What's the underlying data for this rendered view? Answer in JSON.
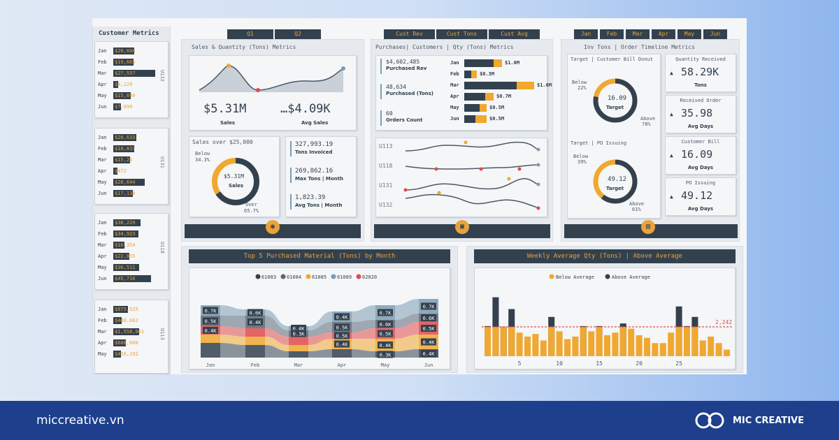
{
  "left": {
    "title": "Customer Metrics",
    "groups": [
      {
        "code": "U132",
        "rows": [
          {
            "month": "Jan",
            "label": "$20,668",
            "pct": 0.5
          },
          {
            "month": "Feb",
            "label": "$19,665",
            "pct": 0.48
          },
          {
            "month": "Mar",
            "label": "$27,557",
            "pct": 1.0
          },
          {
            "month": "Apr",
            "label": "$4,120",
            "pct": 0.12
          },
          {
            "month": "May",
            "label": "$15,690",
            "pct": 0.42
          },
          {
            "month": "Jun",
            "label": "$7,890",
            "pct": 0.18
          }
        ]
      },
      {
        "code": "U131",
        "rows": [
          {
            "month": "Jan",
            "label": "$20,633",
            "pct": 0.55
          },
          {
            "month": "Feb",
            "label": "$18,837",
            "pct": 0.5
          },
          {
            "month": "Mar",
            "label": "$15,26",
            "pct": 0.4
          },
          {
            "month": "Apr",
            "label": "$472",
            "pct": 0.05
          },
          {
            "month": "May",
            "label": "$28,644",
            "pct": 0.75
          },
          {
            "month": "Jun",
            "label": "$17,138",
            "pct": 0.46
          }
        ]
      },
      {
        "code": "U118",
        "rows": [
          {
            "month": "Jan",
            "label": "$38,229",
            "pct": 0.65
          },
          {
            "month": "Feb",
            "label": "$34,923",
            "pct": 0.6
          },
          {
            "month": "Mar",
            "label": "$16,354",
            "pct": 0.27
          },
          {
            "month": "Apr",
            "label": "$22,855",
            "pct": 0.38
          },
          {
            "month": "May",
            "label": "$36,511",
            "pct": 0.62
          },
          {
            "month": "Jun",
            "label": "$45,716",
            "pct": 0.9
          }
        ]
      },
      {
        "code": "U113",
        "rows": [
          {
            "month": "Jan",
            "label": "$875,525",
            "pct": 0.35
          },
          {
            "month": "Feb",
            "label": "$448,662",
            "pct": 0.2
          },
          {
            "month": "Mar",
            "label": "$1,558,061",
            "pct": 0.62
          },
          {
            "month": "Apr",
            "label": "$688,000",
            "pct": 0.3
          },
          {
            "month": "May",
            "label": "$428,192",
            "pct": 0.18
          }
        ]
      }
    ]
  },
  "sales": {
    "tabs": [
      "Q1",
      "Q2"
    ],
    "panel_title": "Sales & Quantity (Tons)  Metrics",
    "total_value": "$5.31M",
    "total_label": "Sales",
    "avg_value": "…$4.09K",
    "avg_label": "Avg Sales",
    "donut_title": "Sales over $25,000",
    "donut_center_value": "$5.31M",
    "donut_center_label": "Sales",
    "below_label": "Below",
    "below_pct": "34.3%",
    "over_label": "Over",
    "over_pct": "65.7%",
    "over_fraction": 0.657,
    "kpis": [
      {
        "value": "327,993.19",
        "label": "Tons Invoiced"
      },
      {
        "value": "269,862.16",
        "label": "Max Tons | Month"
      },
      {
        "value": "1,823.39",
        "label": "Avg Tons | Month"
      }
    ]
  },
  "purchases": {
    "tabs": [
      "Cust Rev",
      "Cust Tons",
      "Cust Avg"
    ],
    "panel_title": "Purchases| Customers | Qty (Tons)  Metrics",
    "kpis": [
      {
        "value": "$4,602,485",
        "label": "Purchased Rev"
      },
      {
        "value": "48,634",
        "label": "Purchased (Tons)"
      },
      {
        "value": "60",
        "label": "Orders Count"
      }
    ],
    "bars": [
      {
        "month": "Jan",
        "label": "$1.0M",
        "dark": 0.42,
        "orange": 0.12
      },
      {
        "month": "Feb",
        "label": "$0.3M",
        "dark": 0.1,
        "orange": 0.08
      },
      {
        "month": "Mar",
        "label": "$1.6M",
        "dark": 0.75,
        "orange": 0.25
      },
      {
        "month": "Apr",
        "label": "$0.7M",
        "dark": 0.3,
        "orange": 0.12
      },
      {
        "month": "May",
        "label": "$0.5M",
        "dark": 0.22,
        "orange": 0.1
      },
      {
        "month": "Jun",
        "label": "$0.5M",
        "dark": 0.16,
        "orange": 0.16
      }
    ],
    "line_series": [
      "U113",
      "U118",
      "U131",
      "U132"
    ]
  },
  "inventory": {
    "tabs": [
      "Jan",
      "Feb",
      "Mar",
      "Apr",
      "May",
      "Jun"
    ],
    "panel_title": "Inv Tons | Order Timeline Metrics",
    "donut1_title": "Target | Customer Bill Donut",
    "donut1_value": "16.09",
    "donut1_label": "Target",
    "donut1_below_label": "Below",
    "donut1_below_pct": "22%",
    "donut1_above_label": "Above",
    "donut1_above_pct": "78%",
    "donut1_above_fraction": 0.78,
    "donut2_title": "Target | PO Issuing",
    "donut2_value": "49.12",
    "donut2_label": "Target",
    "donut2_below_label": "Below",
    "donut2_below_pct": "39%",
    "donut2_above_label": "Above",
    "donut2_above_pct": "61%",
    "donut2_above_fraction": 0.61,
    "kpis": [
      {
        "title": "Quantity Received",
        "value": "58.29K",
        "label": "Tons"
      },
      {
        "title": "Received Order",
        "value": "35.98",
        "label": "Avg Days"
      },
      {
        "title": "Customer Bill",
        "value": "16.09",
        "label": "Avg Days"
      },
      {
        "title": "PO Issuing",
        "value": "49.12",
        "label": "Avg Days"
      }
    ]
  },
  "top5": {
    "title": "Top 5  Purchased Material (Tons) by  Month",
    "legend": [
      {
        "name": "61083",
        "color": "#33414f"
      },
      {
        "name": "61084",
        "color": "#5a6675"
      },
      {
        "name": "61085",
        "color": "#f0a830"
      },
      {
        "name": "61089",
        "color": "#7d9cb3"
      },
      {
        "name": "62020",
        "color": "#e04b4b"
      }
    ],
    "months": [
      "Jan",
      "Feb",
      "Mar",
      "Apr",
      "May",
      "Jun"
    ]
  },
  "weekly": {
    "title": "Weekly Average Qty (Tons) | Above Average",
    "legend_below": "Below Average",
    "legend_above": "Above Average",
    "avg_label": "2,242",
    "ticks": [
      "5",
      "10",
      "15",
      "20",
      "25"
    ]
  },
  "chart_data": [
    {
      "type": "area",
      "title": "Sales & Quantity (Tons)  Metrics",
      "x": [
        1,
        2,
        3,
        4,
        5,
        6
      ],
      "values": [
        2.2,
        3.4,
        1.6,
        2.5,
        2.4,
        3.0
      ]
    },
    {
      "type": "bar",
      "title": "Purchases| Customers | Qty (Tons)  Metrics",
      "categories": [
        "Jan",
        "Feb",
        "Mar",
        "Apr",
        "May",
        "Jun"
      ],
      "values": [
        1.0,
        0.3,
        1.6,
        0.7,
        0.5,
        0.5
      ]
    },
    {
      "type": "line",
      "categories": [
        "Jan",
        "Feb",
        "Mar",
        "Apr",
        "May",
        "Jun"
      ],
      "series": [
        {
          "name": "U113",
          "values": [
            0.4,
            0.55,
            0.5,
            0.6,
            0.55,
            0.5
          ]
        },
        {
          "name": "U118",
          "values": [
            0.5,
            0.45,
            0.5,
            0.48,
            0.5,
            0.45
          ]
        },
        {
          "name": "U131",
          "values": [
            0.5,
            0.45,
            0.4,
            0.55,
            0.45,
            0.4
          ]
        },
        {
          "name": "U132",
          "values": [
            0.45,
            0.55,
            0.4,
            0.45,
            0.5,
            0.4
          ]
        }
      ]
    },
    {
      "type": "bar",
      "title": "Top 5  Purchased Material (Tons) by  Month",
      "categories": [
        "Jan",
        "Feb",
        "Mar",
        "Apr",
        "May",
        "Jun"
      ],
      "series": [
        {
          "name": "61083",
          "values": [
            0.7,
            0.6,
            0.3,
            0.4,
            0.3,
            0.4
          ]
        },
        {
          "name": "61085",
          "values": [
            0.4,
            0.4,
            0.3,
            0.5,
            0.6,
            0.7
          ]
        },
        {
          "name": "62020",
          "values": [
            0.4,
            0.4,
            0.4,
            0.3,
            0.5,
            0.6
          ]
        },
        {
          "name": "61084",
          "values": [
            0.5,
            0.6,
            0.3,
            0.5,
            0.4,
            0.4
          ]
        },
        {
          "name": "61089",
          "values": [
            0.5,
            0.3,
            0.2,
            0.5,
            0.7,
            0.7
          ]
        }
      ],
      "data_labels": [
        [
          "0.7K",
          "0.5K",
          "0.4K"
        ],
        [
          "0.6K",
          "0.4K"
        ],
        [
          "0.4K",
          "0.3K"
        ],
        [
          "0.4K",
          "0.5K",
          "0.5K",
          "0.4K"
        ],
        [
          "0.7K",
          "0.6K",
          "0.5K",
          "0.4K",
          "0.3K"
        ],
        [
          "0.7K",
          "0.6K",
          "0.5K",
          "0.4K",
          "0.4K"
        ]
      ]
    },
    {
      "type": "bar",
      "title": "Weekly Average Qty (Tons) | Above Average",
      "x": [
        1,
        2,
        3,
        4,
        5,
        6,
        7,
        8,
        9,
        10,
        11,
        12,
        13,
        14,
        15,
        16,
        17,
        18,
        19,
        20,
        21,
        22,
        23,
        24,
        25,
        26,
        27,
        28,
        29,
        30,
        31
      ],
      "values": [
        2300,
        4500,
        2250,
        3600,
        1800,
        1500,
        1700,
        1200,
        3000,
        1900,
        1300,
        1500,
        2300,
        1900,
        2300,
        1600,
        1800,
        2500,
        2100,
        1600,
        1400,
        1000,
        1000,
        1800,
        3800,
        2300,
        3000,
        1200,
        1500,
        1000,
        500
      ],
      "average": 2242,
      "xlim": [
        1,
        31
      ]
    }
  ],
  "footer": {
    "url": "miccreative.vn",
    "brand": "MIC CREATIVE"
  }
}
